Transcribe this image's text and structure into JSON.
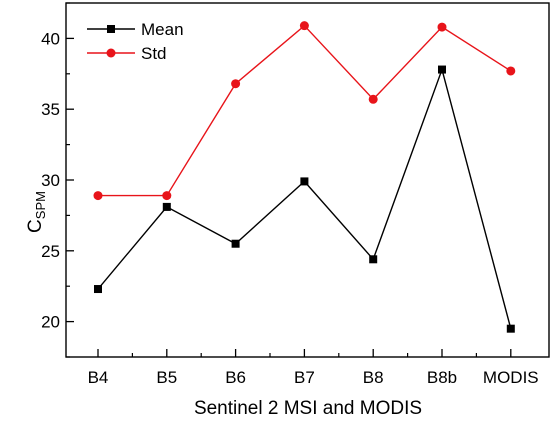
{
  "chart_data": {
    "type": "line",
    "xlabel": "Sentinel 2 MSI and MODIS",
    "ylabel": {
      "main": "C",
      "sub": "SPM"
    },
    "categories": [
      "B4",
      "B5",
      "B6",
      "B7",
      "B8",
      "B8b",
      "MODIS"
    ],
    "ylim": [
      17.5,
      42.5
    ],
    "yticks": [
      20,
      25,
      30,
      35,
      40
    ],
    "grid": false,
    "legend_position": "top-left",
    "series": [
      {
        "name": "Mean",
        "color": "#000000",
        "marker": "square",
        "values": [
          22.3,
          28.1,
          25.5,
          29.9,
          24.4,
          37.8,
          19.5
        ]
      },
      {
        "name": "Std",
        "color": "#e8141a",
        "marker": "circle",
        "values": [
          28.9,
          28.9,
          36.8,
          40.9,
          35.7,
          40.8,
          37.7
        ]
      }
    ]
  }
}
